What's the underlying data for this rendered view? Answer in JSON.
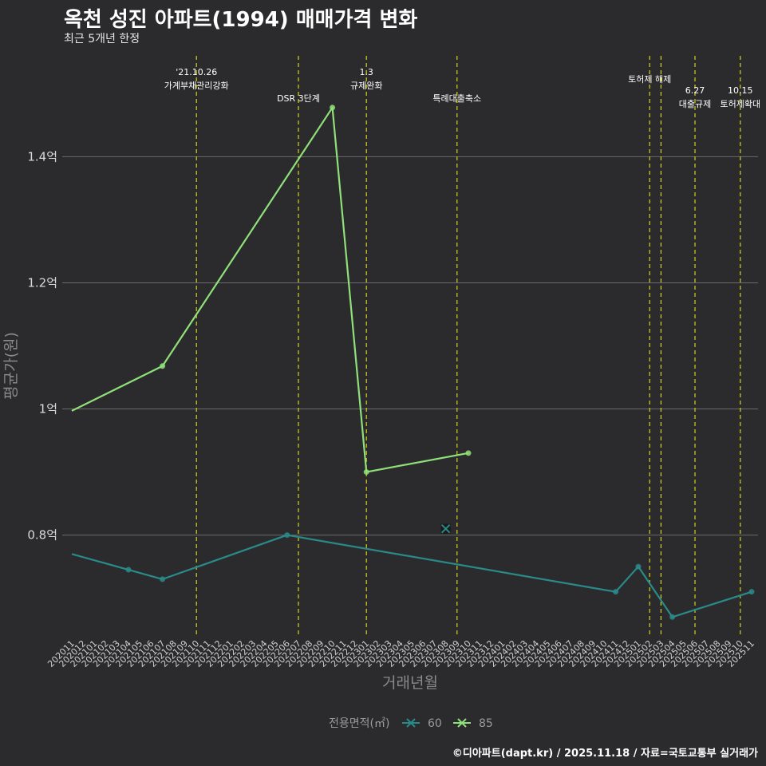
{
  "header": {
    "title": "옥천 성진 아파트(1994) 매매가격 변화",
    "subtitle": "최근 5개년 한정"
  },
  "footer": {
    "credit": "©디아파트(dapt.kr) / 2025.11.18 / 자료=국토교통부 실거래가"
  },
  "colors": {
    "background": "#2b2b2d",
    "grid": "#6b6b6b",
    "event_line": "#d4d21c",
    "series_60": "#2a8a8a",
    "series_85": "#90e07a"
  },
  "chart_data": {
    "type": "line",
    "title": "옥천 성진 아파트(1994) 매매가격 변화",
    "xlabel": "거래년월",
    "ylabel": "평균가(원)",
    "ylim": [
      0.64,
      1.56
    ],
    "yticks": [
      0.8,
      1.0,
      1.2,
      1.4
    ],
    "ytick_labels": [
      "0.8억",
      "1억",
      "1.2억",
      "1.4억"
    ],
    "categories": [
      "202011",
      "202012",
      "202101",
      "202102",
      "202103",
      "202104",
      "202105",
      "202106",
      "202107",
      "202108",
      "202109",
      "202110",
      "202111",
      "202112",
      "202201",
      "202202",
      "202203",
      "202204",
      "202205",
      "202206",
      "202207",
      "202208",
      "202209",
      "202210",
      "202211",
      "202212",
      "202301",
      "202302",
      "202303",
      "202304",
      "202305",
      "202306",
      "202307",
      "202308",
      "202309",
      "202310",
      "202311",
      "202312",
      "202401",
      "202402",
      "202403",
      "202404",
      "202405",
      "202406",
      "202407",
      "202408",
      "202409",
      "202410",
      "202411",
      "202412",
      "202501",
      "202502",
      "202503",
      "202504",
      "202505",
      "202506",
      "202507",
      "202508",
      "202509",
      "202510",
      "202511"
    ],
    "series": [
      {
        "name": "60",
        "points": [
          {
            "x": "202011",
            "y": 0.77,
            "marker": false
          },
          {
            "x": "202104",
            "y": 0.745,
            "marker": true
          },
          {
            "x": "202107",
            "y": 0.73,
            "marker": true
          },
          {
            "x": "202206",
            "y": 0.8,
            "marker": true
          },
          {
            "x": "202411",
            "y": 0.71,
            "marker": true
          },
          {
            "x": "202501",
            "y": 0.75,
            "marker": true
          },
          {
            "x": "202504",
            "y": 0.67,
            "marker": true
          },
          {
            "x": "202511",
            "y": 0.71,
            "marker": true
          }
        ]
      },
      {
        "name": "85",
        "points": [
          {
            "x": "202011",
            "y": 0.997,
            "marker": false
          },
          {
            "x": "202107",
            "y": 1.068,
            "marker": true
          },
          {
            "x": "202210",
            "y": 1.478,
            "marker": true
          },
          {
            "x": "202301",
            "y": 0.9,
            "marker": true
          },
          {
            "x": "202310",
            "y": 0.93,
            "marker": true
          }
        ]
      }
    ],
    "outliers": [
      {
        "series": "60",
        "x": "202308",
        "y": 0.81
      }
    ],
    "events": [
      {
        "x": "202110",
        "lines": [
          "'21.10.26",
          "가계부채관리강화"
        ],
        "row": 0
      },
      {
        "x": "202207",
        "lines": [
          "DSR 3단계"
        ],
        "row": 1
      },
      {
        "x": "202301",
        "lines": [
          "1.3",
          "규제완화"
        ],
        "row": 0
      },
      {
        "x": "202309",
        "lines": [
          "특례대출축소"
        ],
        "row": 1
      },
      {
        "x": "202502",
        "lines": [
          "토허제 해제"
        ],
        "row": -1
      },
      {
        "x": "202503",
        "lines": [],
        "row": 0
      },
      {
        "x": "202506",
        "lines": [
          "6.27",
          "대출규제"
        ],
        "row": 2
      },
      {
        "x": "202510",
        "lines": [
          "10.15",
          "토허제확대"
        ],
        "row": 2
      }
    ],
    "legend": {
      "title": "전용면적(㎡)",
      "position": "bottom",
      "entries": [
        "60",
        "85"
      ]
    }
  }
}
